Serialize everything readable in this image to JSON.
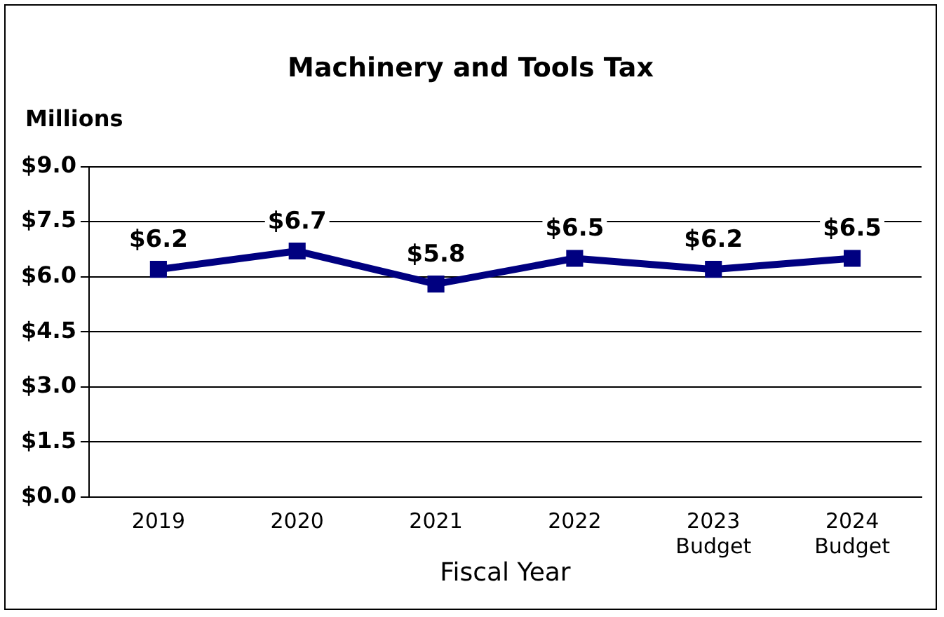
{
  "chart_data": {
    "type": "line",
    "title": "Machinery and Tools Tax",
    "ylabel": "Millions",
    "xlabel": "Fiscal Year",
    "categories": [
      "2019",
      "2020",
      "2021",
      "2022",
      "2023\nBudget",
      "2024\nBudget"
    ],
    "series": [
      {
        "color": "#000080",
        "values": [
          6.2,
          6.7,
          5.8,
          6.5,
          6.2,
          6.5
        ],
        "value_labels": [
          "$6.2",
          "$6.7",
          "$5.8",
          "$6.5",
          "$6.2",
          "$6.5"
        ]
      }
    ],
    "ylim": [
      0,
      9
    ],
    "yticks": [
      {
        "value": 0,
        "label": "$0.0"
      },
      {
        "value": 1.5,
        "label": "$1.5"
      },
      {
        "value": 3,
        "label": "$3.0"
      },
      {
        "value": 4.5,
        "label": "$4.5"
      },
      {
        "value": 6,
        "label": "$6.0"
      },
      {
        "value": 7.5,
        "label": "$7.5"
      },
      {
        "value": 9,
        "label": "$9.0"
      }
    ],
    "grid": "y",
    "legend": false,
    "marker": "square",
    "line_style": "solid"
  }
}
